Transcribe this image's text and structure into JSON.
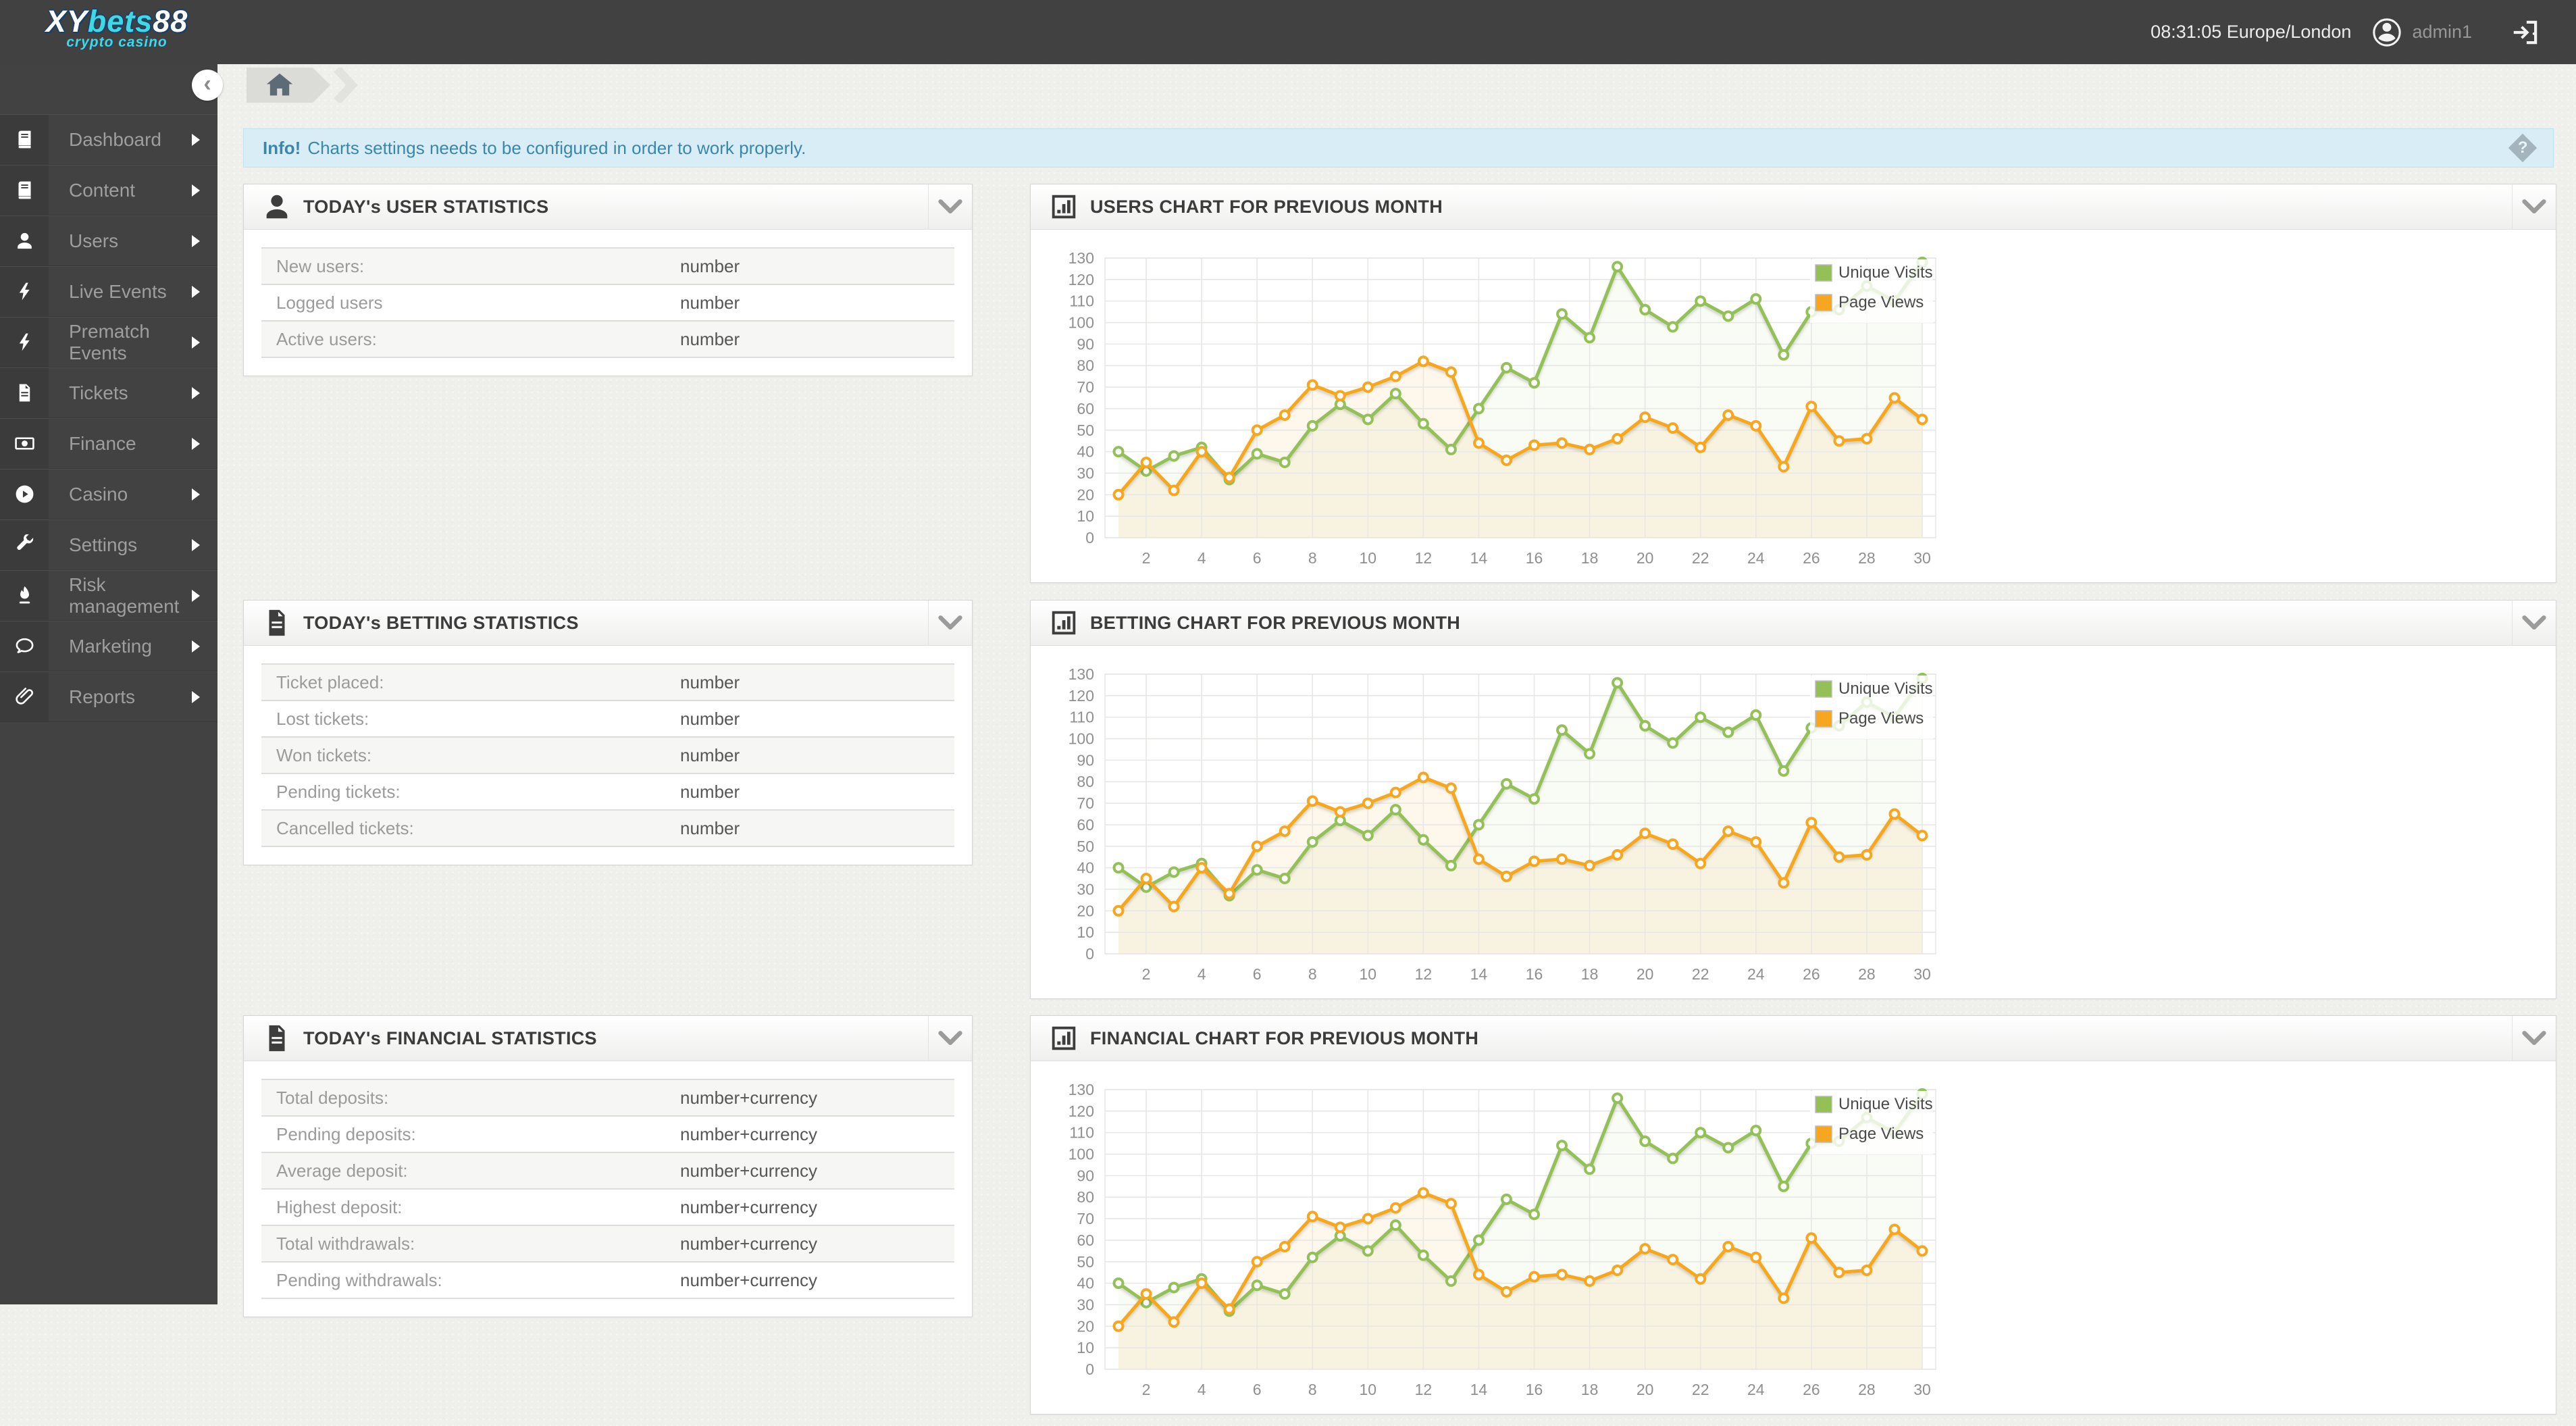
{
  "topbar": {
    "logo": {
      "part1": "XY",
      "part2": "bets",
      "part3": "88",
      "subtitle": "crypto casino"
    },
    "clock": "08:31:05 Europe/London",
    "username": "admin1",
    "avatar_icon": "avatar-icon",
    "logout_icon": "logout-icon"
  },
  "sidebar": {
    "collapse_glyph": "‹",
    "items": [
      {
        "label": "Dashboard",
        "icon": "book-icon"
      },
      {
        "label": "Content",
        "icon": "book-icon"
      },
      {
        "label": "Users",
        "icon": "user-icon"
      },
      {
        "label": "Live Events",
        "icon": "bolt-icon"
      },
      {
        "label": "Prematch Events",
        "icon": "bolt-icon"
      },
      {
        "label": "Tickets",
        "icon": "document-icon"
      },
      {
        "label": "Finance",
        "icon": "banknote-icon"
      },
      {
        "label": "Casino",
        "icon": "play-circle-icon"
      },
      {
        "label": "Settings",
        "icon": "wrench-icon"
      },
      {
        "label": "Risk management",
        "icon": "flame-icon"
      },
      {
        "label": "Marketing",
        "icon": "chat-bubble-icon"
      },
      {
        "label": "Reports",
        "icon": "paperclip-icon"
      }
    ]
  },
  "breadcrumb": {
    "home_icon": "home-icon"
  },
  "alert": {
    "prefix": "Info!",
    "message": "Charts settings needs to be configured in order to work properly.",
    "help_glyph": "?",
    "bg_color": "#d9edf7",
    "text_color": "#3a87ad"
  },
  "panels": {
    "user_stats": {
      "title": "TODAY's USER STATISTICS",
      "icon": "user-icon",
      "rows": [
        {
          "label": "New users:",
          "value": "number"
        },
        {
          "label": "Logged users",
          "value": "number"
        },
        {
          "label": "Active users:",
          "value": "number"
        }
      ]
    },
    "betting_stats": {
      "title": "TODAY's BETTING STATISTICS",
      "icon": "document-icon",
      "rows": [
        {
          "label": "Ticket placed:",
          "value": "number"
        },
        {
          "label": "Lost tickets:",
          "value": "number"
        },
        {
          "label": "Won tickets:",
          "value": "number"
        },
        {
          "label": "Pending tickets:",
          "value": "number"
        },
        {
          "label": "Cancelled tickets:",
          "value": "number"
        }
      ]
    },
    "financial_stats": {
      "title": "TODAY's FINANCIAL STATISTICS",
      "icon": "document-icon",
      "rows": [
        {
          "label": "Total deposits:",
          "value": "number+currency"
        },
        {
          "label": "Pending deposits:",
          "value": "number+currency"
        },
        {
          "label": "Average deposit:",
          "value": "number+currency"
        },
        {
          "label": "Highest deposit:",
          "value": "number+currency"
        },
        {
          "label": "Total withdrawals:",
          "value": "number+currency"
        },
        {
          "label": "Pending withdrawals:",
          "value": "number+currency"
        }
      ]
    },
    "users_chart": {
      "title": "USERS CHART FOR PREVIOUS MONTH",
      "icon": "bar-chart-icon"
    },
    "betting_chart": {
      "title": "BETTING CHART FOR PREVIOUS MONTH",
      "icon": "bar-chart-icon"
    },
    "financial_chart": {
      "title": "FINANCIAL CHART FOR PREVIOUS MONTH",
      "icon": "bar-chart-icon"
    }
  },
  "chart_data": {
    "type": "line",
    "note": "same placeholder chart repeated in users, betting and financial panels",
    "x": [
      1,
      2,
      3,
      4,
      5,
      6,
      7,
      8,
      9,
      10,
      11,
      12,
      13,
      14,
      15,
      16,
      17,
      18,
      19,
      20,
      21,
      22,
      23,
      24,
      25,
      26,
      27,
      28,
      29,
      30
    ],
    "series": [
      {
        "name": "Unique Visits",
        "color": "#94c058",
        "fill": "rgba(148,192,88,0.06)",
        "values": [
          40,
          31,
          38,
          42,
          27,
          39,
          35,
          52,
          62,
          55,
          67,
          53,
          41,
          60,
          79,
          72,
          104,
          93,
          126,
          106,
          98,
          110,
          103,
          111,
          85,
          105,
          106,
          117,
          110,
          128
        ]
      },
      {
        "name": "Page Views",
        "color": "#f7a71f",
        "fill": "rgba(247,167,31,0.09)",
        "values": [
          20,
          35,
          22,
          40,
          28,
          50,
          57,
          71,
          66,
          70,
          75,
          82,
          77,
          44,
          36,
          43,
          44,
          41,
          46,
          56,
          51,
          42,
          57,
          52,
          33,
          61,
          45,
          46,
          65,
          55
        ]
      }
    ],
    "title": "",
    "xlabel": "",
    "ylabel": "",
    "ylim": [
      0,
      130
    ],
    "ytick_step": 10,
    "xtick_step": 2,
    "grid": true,
    "grid_color": "#e7e7e5",
    "legend_position": "top-right",
    "instances": [
      "users_chart",
      "betting_chart",
      "financial_chart"
    ]
  }
}
